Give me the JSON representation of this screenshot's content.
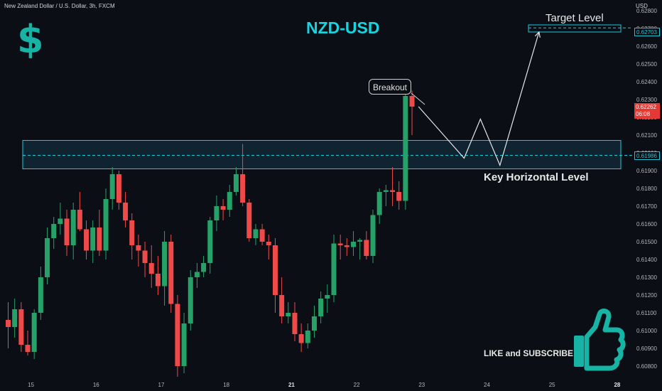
{
  "header": {
    "symbol": "New Zealand Dollar / U.S. Dollar, 3h, FXCM",
    "title": "NZD-USD",
    "currency": "USD"
  },
  "annotations": {
    "dollar_icon": "$",
    "breakout": "Breakout",
    "target_level": "Target Level",
    "key_level": "Key Horizontal Level",
    "like_subscribe": "LIKE and SUBSCRIBE",
    "target_price": "0.62703",
    "key_price": "0.61986",
    "current_price": "0.62262",
    "countdown": "06:08"
  },
  "colors": {
    "bull": "#26a269",
    "bear": "#ef4a4a",
    "accent": "#17c9d9",
    "zone_fill": "#0f2330",
    "thumb": "#17b3a4"
  },
  "chart_data": {
    "type": "candlestick",
    "y_ticks": [
      0.608,
      0.609,
      0.61,
      0.611,
      0.612,
      0.613,
      0.614,
      0.615,
      0.616,
      0.617,
      0.618,
      0.619,
      0.62,
      0.621,
      0.622,
      0.623,
      0.624,
      0.625,
      0.626,
      0.627,
      0.628
    ],
    "y_tick_labels": [
      "0.60800",
      "0.60900",
      "0.61000",
      "0.61100",
      "0.61200",
      "0.61300",
      "0.61400",
      "0.61500",
      "0.61600",
      "0.61700",
      "0.61800",
      "0.61900",
      "0.62000",
      "0.62100",
      "0.62200",
      "0.62300",
      "0.62400",
      "0.62500",
      "0.62600",
      "0.62700",
      "0.62800"
    ],
    "ylim": [
      0.6074,
      0.6286
    ],
    "x_ticks": [
      {
        "label": "15",
        "index": 3.5,
        "bold": false
      },
      {
        "label": "16",
        "index": 13.5,
        "bold": false
      },
      {
        "label": "17",
        "index": 23.5,
        "bold": false
      },
      {
        "label": "18",
        "index": 33.5,
        "bold": false
      },
      {
        "label": "21",
        "index": 43.5,
        "bold": true
      },
      {
        "label": "22",
        "index": 53.5,
        "bold": false
      },
      {
        "label": "23",
        "index": 63.5,
        "bold": false
      },
      {
        "label": "24",
        "index": 73.5,
        "bold": false
      },
      {
        "label": "25",
        "index": 83.5,
        "bold": false
      },
      {
        "label": "28",
        "index": 93.5,
        "bold": true
      }
    ],
    "candles": [
      [
        0.6106,
        0.6116,
        0.609,
        0.6102
      ],
      [
        0.6102,
        0.6118,
        0.6096,
        0.6112
      ],
      [
        0.6112,
        0.6116,
        0.6088,
        0.6092
      ],
      [
        0.6092,
        0.61,
        0.6086,
        0.6088
      ],
      [
        0.6088,
        0.6112,
        0.6084,
        0.611
      ],
      [
        0.611,
        0.6136,
        0.6106,
        0.613
      ],
      [
        0.613,
        0.6158,
        0.6126,
        0.6152
      ],
      [
        0.6152,
        0.6164,
        0.6146,
        0.616
      ],
      [
        0.616,
        0.6172,
        0.6154,
        0.6163
      ],
      [
        0.6163,
        0.6168,
        0.6142,
        0.6148
      ],
      [
        0.6148,
        0.6172,
        0.614,
        0.6168
      ],
      [
        0.6168,
        0.6178,
        0.6156,
        0.6157
      ],
      [
        0.6157,
        0.6162,
        0.614,
        0.6145
      ],
      [
        0.6145,
        0.6162,
        0.6138,
        0.6158
      ],
      [
        0.6158,
        0.6168,
        0.6142,
        0.6145
      ],
      [
        0.6145,
        0.618,
        0.614,
        0.6174
      ],
      [
        0.6174,
        0.6192,
        0.6168,
        0.6188
      ],
      [
        0.6188,
        0.619,
        0.6168,
        0.6172
      ],
      [
        0.6172,
        0.6178,
        0.6158,
        0.6162
      ],
      [
        0.6162,
        0.6166,
        0.614,
        0.6148
      ],
      [
        0.6148,
        0.6154,
        0.6136,
        0.6145
      ],
      [
        0.6145,
        0.615,
        0.613,
        0.6138
      ],
      [
        0.6138,
        0.6148,
        0.6124,
        0.6132
      ],
      [
        0.6132,
        0.6142,
        0.612,
        0.6125
      ],
      [
        0.6125,
        0.6156,
        0.6114,
        0.615
      ],
      [
        0.615,
        0.6154,
        0.611,
        0.6115
      ],
      [
        0.6115,
        0.612,
        0.6074,
        0.608
      ],
      [
        0.608,
        0.611,
        0.6076,
        0.6104
      ],
      [
        0.6104,
        0.6134,
        0.61,
        0.613
      ],
      [
        0.613,
        0.6138,
        0.6124,
        0.6133
      ],
      [
        0.6133,
        0.6142,
        0.613,
        0.6138
      ],
      [
        0.6138,
        0.6164,
        0.6132,
        0.6162
      ],
      [
        0.6162,
        0.6176,
        0.6156,
        0.617
      ],
      [
        0.617,
        0.6174,
        0.6162,
        0.6168
      ],
      [
        0.6168,
        0.6182,
        0.6164,
        0.6178
      ],
      [
        0.6178,
        0.6192,
        0.6176,
        0.6188
      ],
      [
        0.6188,
        0.6205,
        0.617,
        0.6172
      ],
      [
        0.6172,
        0.6174,
        0.615,
        0.6152
      ],
      [
        0.6152,
        0.616,
        0.6148,
        0.6157
      ],
      [
        0.6157,
        0.616,
        0.6148,
        0.615
      ],
      [
        0.615,
        0.6154,
        0.614,
        0.6148
      ],
      [
        0.6148,
        0.6152,
        0.611,
        0.612
      ],
      [
        0.612,
        0.613,
        0.6104,
        0.6108
      ],
      [
        0.6108,
        0.6116,
        0.6104,
        0.611
      ],
      [
        0.611,
        0.6116,
        0.6094,
        0.6098
      ],
      [
        0.6098,
        0.6104,
        0.6088,
        0.6093
      ],
      [
        0.6093,
        0.6104,
        0.609,
        0.61
      ],
      [
        0.61,
        0.6114,
        0.6096,
        0.6108
      ],
      [
        0.6108,
        0.6122,
        0.6104,
        0.6118
      ],
      [
        0.6118,
        0.6126,
        0.611,
        0.612
      ],
      [
        0.612,
        0.6154,
        0.6116,
        0.6149
      ],
      [
        0.6149,
        0.6154,
        0.614,
        0.6148
      ],
      [
        0.6148,
        0.6152,
        0.6142,
        0.6147
      ],
      [
        0.6147,
        0.6156,
        0.6142,
        0.615
      ],
      [
        0.615,
        0.6152,
        0.614,
        0.6151
      ],
      [
        0.6151,
        0.6156,
        0.614,
        0.6142
      ],
      [
        0.6142,
        0.6168,
        0.6138,
        0.6165
      ],
      [
        0.6165,
        0.618,
        0.616,
        0.6178
      ],
      [
        0.6178,
        0.6182,
        0.617,
        0.6179
      ],
      [
        0.6179,
        0.6192,
        0.617,
        0.6178
      ],
      [
        0.6178,
        0.6184,
        0.6168,
        0.6173
      ],
      [
        0.6173,
        0.6235,
        0.6168,
        0.6232
      ],
      [
        0.6232,
        0.6235,
        0.621,
        0.6226
      ]
    ],
    "zones": [
      {
        "name": "target",
        "from": 0.6268,
        "to": 0.6272,
        "level": 0.62703
      },
      {
        "name": "key",
        "from": 0.6191,
        "to": 0.6207,
        "level": 0.61986
      }
    ],
    "projection": [
      {
        "i": 63,
        "p": 0.6226
      },
      {
        "i": 70,
        "p": 0.6197
      },
      {
        "i": 72.5,
        "p": 0.6219
      },
      {
        "i": 75.5,
        "p": 0.6193
      },
      {
        "i": 81.5,
        "p": 0.6268
      }
    ]
  }
}
